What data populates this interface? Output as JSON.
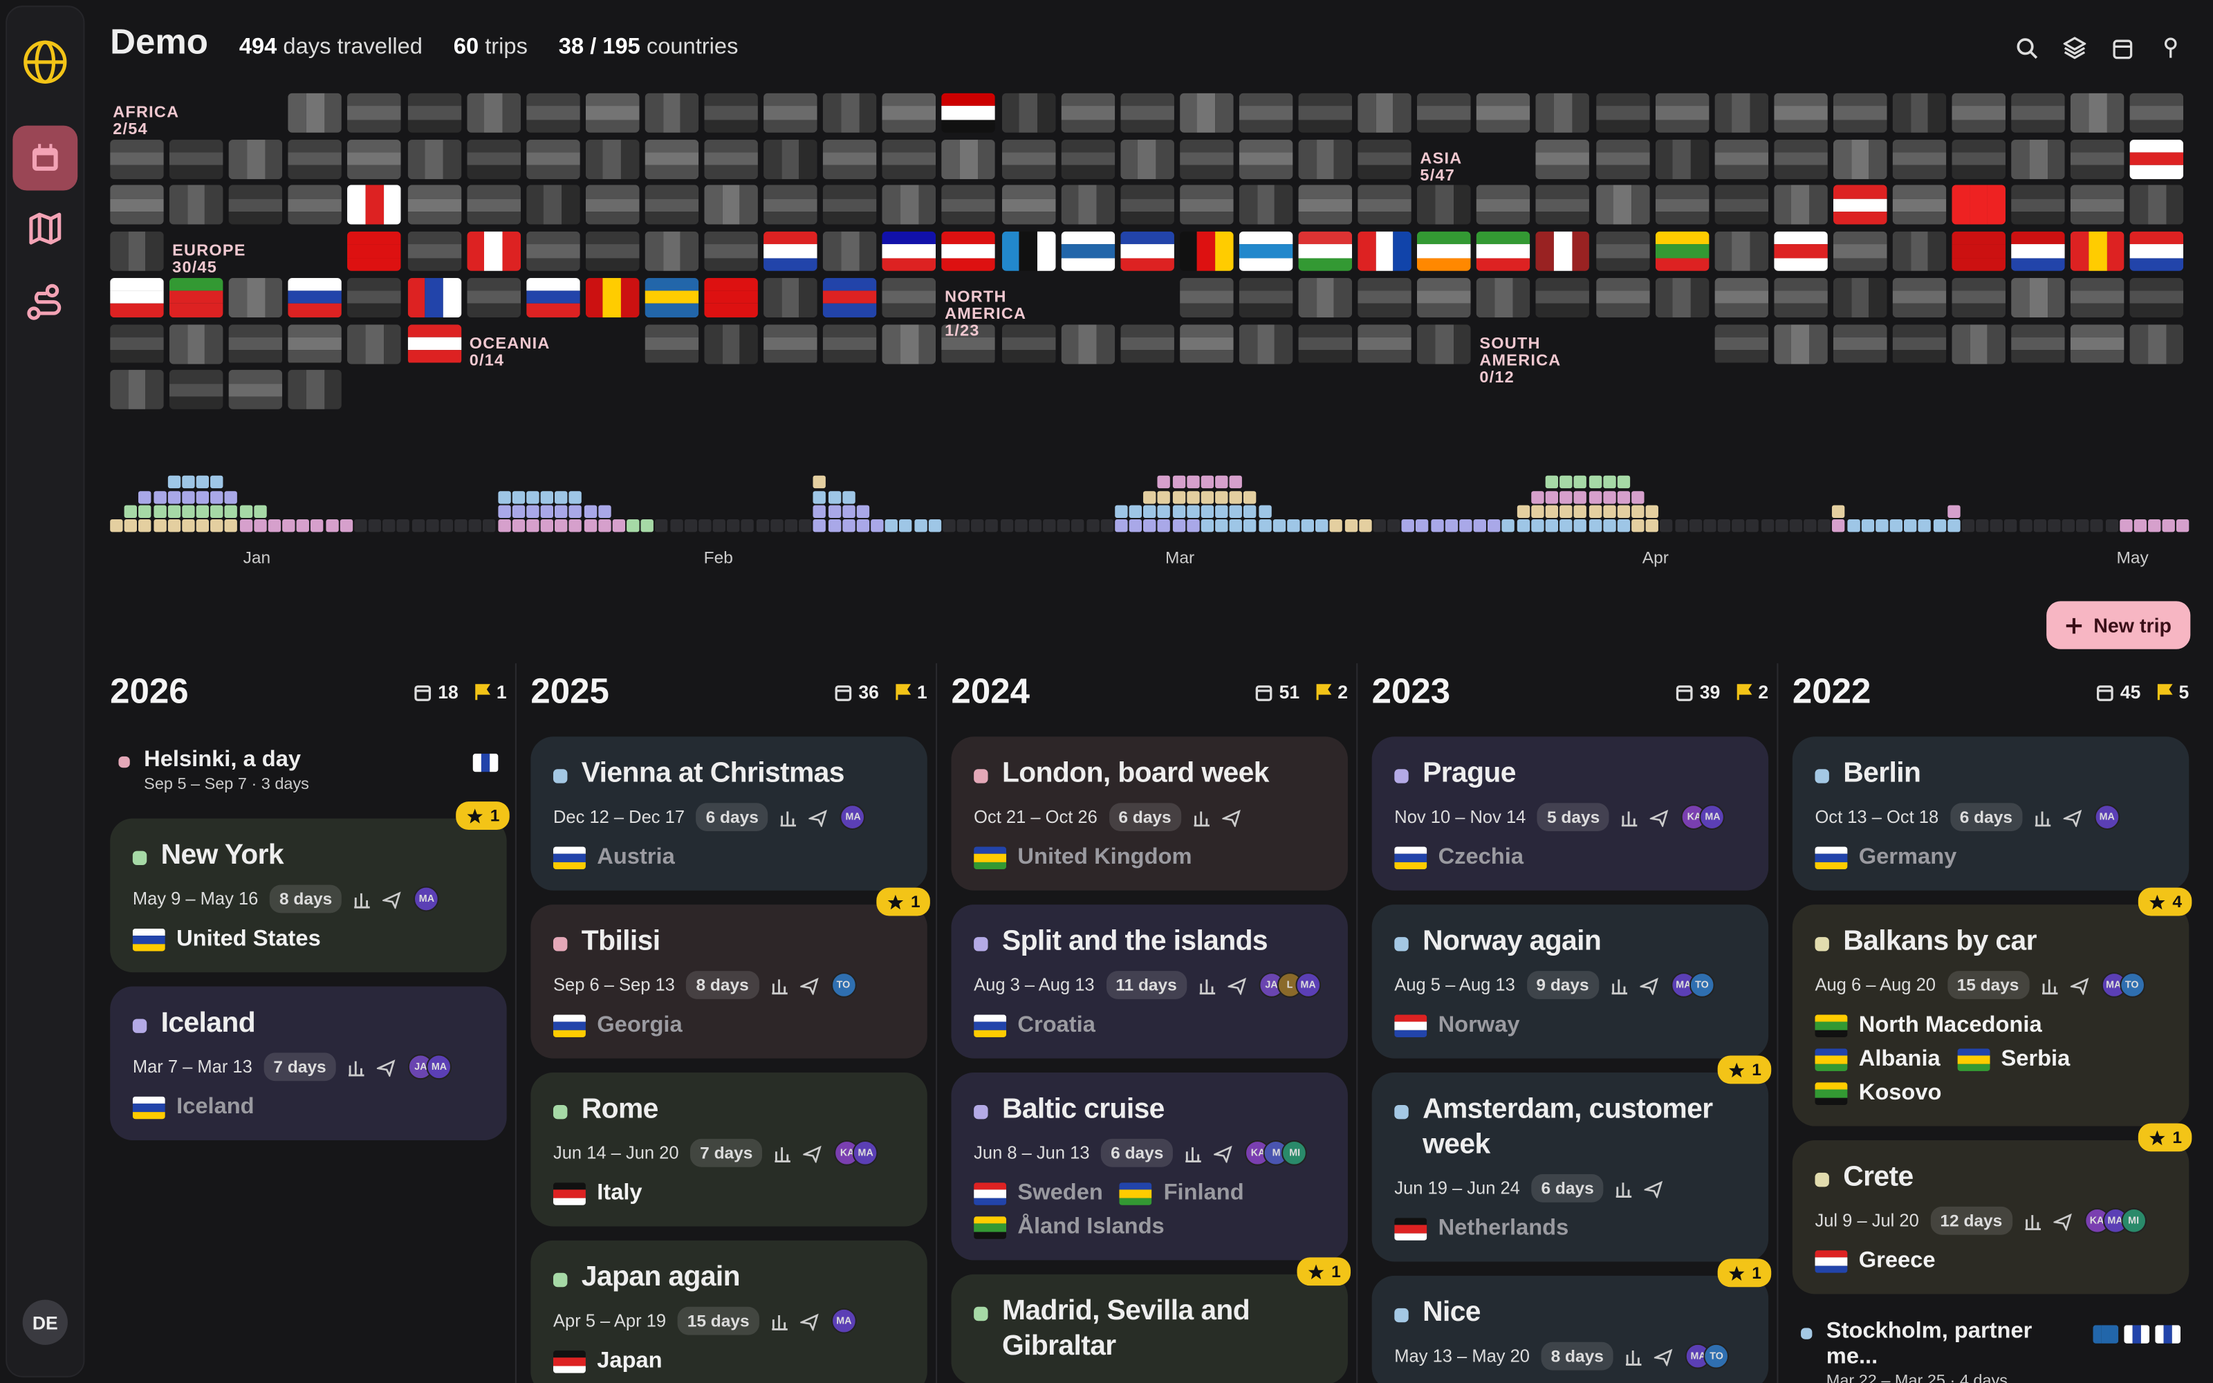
{
  "header": {
    "title": "Demo",
    "stats": [
      {
        "value": "494",
        "label": "days travelled"
      },
      {
        "value": "60",
        "label": "trips"
      },
      {
        "value": "38 / 195",
        "label": "countries"
      }
    ]
  },
  "continents": [
    "AFRICA 2/54",
    "ASIA 5/47",
    "EUROPE 30/45",
    "NORTH AMERICA 1/23",
    "OCEANIA 0/14",
    "SOUTH AMERICA 0/12"
  ],
  "months": [
    "Jan",
    "Feb",
    "Mar",
    "Apr",
    "May"
  ],
  "new_trip": "New trip",
  "user": "DE",
  "years": [
    {
      "year": "2026",
      "days": "18",
      "flags": "1",
      "trips": [
        {
          "compact": true,
          "title": "Helsinki, a day",
          "dates": "Sep 5 – Sep 7 · 3 days",
          "color": "pink"
        },
        {
          "title": "New York",
          "dates": "May 9 – May 16",
          "duration": "8 days",
          "avatars": [
            "MA"
          ],
          "countries": [
            "United States"
          ],
          "star": "1",
          "color": "green"
        },
        {
          "title": "Iceland",
          "dates": "Mar 7 – Mar 13",
          "duration": "7 days",
          "avatars": [
            "JA",
            "MA"
          ],
          "countries": [
            "Iceland"
          ],
          "color": "purple"
        }
      ]
    },
    {
      "year": "2025",
      "days": "36",
      "flags": "1",
      "trips": [
        {
          "title": "Vienna at Christmas",
          "dates": "Dec 12 – Dec 17",
          "duration": "6 days",
          "avatars": [
            "MA"
          ],
          "countries": [
            "Austria"
          ],
          "color": "blue"
        },
        {
          "title": "Tbilisi",
          "dates": "Sep 6 – Sep 13",
          "duration": "8 days",
          "avatars": [
            "TO"
          ],
          "countries": [
            "Georgia"
          ],
          "star": "1",
          "color": "pink"
        },
        {
          "title": "Rome",
          "dates": "Jun 14 – Jun 20",
          "duration": "7 days",
          "avatars": [
            "KA",
            "MA"
          ],
          "countries": [
            "Italy"
          ],
          "color": "green"
        },
        {
          "title": "Japan again",
          "dates": "Apr 5 – Apr 19",
          "duration": "15 days",
          "avatars": [
            "MA"
          ],
          "countries": [
            "Japan"
          ],
          "color": "green"
        }
      ]
    },
    {
      "year": "2024",
      "days": "51",
      "flags": "2",
      "trips": [
        {
          "title": "London, board week",
          "dates": "Oct 21 – Oct 26",
          "duration": "6 days",
          "avatars": [],
          "countries": [
            "United Kingdom"
          ],
          "color": "pink"
        },
        {
          "title": "Split and the islands",
          "dates": "Aug 3 – Aug 13",
          "duration": "11 days",
          "avatars": [
            "JA",
            "L",
            "MA"
          ],
          "countries": [
            "Croatia"
          ],
          "color": "purple"
        },
        {
          "title": "Baltic cruise",
          "dates": "Jun 8 – Jun 13",
          "duration": "6 days",
          "avatars": [
            "KA",
            "M",
            "MI"
          ],
          "countries": [
            "Sweden",
            "Finland",
            "Åland Islands"
          ],
          "color": "purple"
        },
        {
          "title": "Madrid, Sevilla and Gibraltar",
          "star": "1",
          "color": "green"
        }
      ]
    },
    {
      "year": "2023",
      "days": "39",
      "flags": "2",
      "trips": [
        {
          "title": "Prague",
          "dates": "Nov 10 – Nov 14",
          "duration": "5 days",
          "avatars": [
            "KA",
            "MA"
          ],
          "countries": [
            "Czechia"
          ],
          "color": "purple"
        },
        {
          "title": "Norway again",
          "dates": "Aug 5 – Aug 13",
          "duration": "9 days",
          "avatars": [
            "MA",
            "TO"
          ],
          "countries": [
            "Norway"
          ],
          "color": "blue"
        },
        {
          "title": "Amsterdam, customer week",
          "dates": "Jun 19 – Jun 24",
          "duration": "6 days",
          "avatars": [],
          "countries": [
            "Netherlands"
          ],
          "star": "1",
          "color": "blue"
        },
        {
          "title": "Nice",
          "dates": "May 13 – May 20",
          "duration": "8 days",
          "avatars": [
            "MA",
            "TO"
          ],
          "countries": [],
          "star": "1",
          "color": "blue"
        }
      ]
    },
    {
      "year": "2022",
      "days": "45",
      "flags": "5",
      "trips": [
        {
          "title": "Berlin",
          "dates": "Oct 13 – Oct 18",
          "duration": "6 days",
          "avatars": [
            "MA"
          ],
          "countries": [
            "Germany"
          ],
          "color": "blue"
        },
        {
          "title": "Balkans by car",
          "dates": "Aug 6 – Aug 20",
          "duration": "15 days",
          "avatars": [
            "MA",
            "TO"
          ],
          "countries": [
            "North Macedonia",
            "Albania",
            "Serbia",
            "Kosovo"
          ],
          "star": "4",
          "color": "yellow"
        },
        {
          "title": "Crete",
          "dates": "Jul 9 – Jul 20",
          "duration": "12 days",
          "avatars": [
            "KA",
            "MA",
            "MI"
          ],
          "countries": [
            "Greece"
          ],
          "star": "1",
          "color": "yellow"
        },
        {
          "compact": true,
          "title": "Stockholm, partner me...",
          "dates": "Mar 22 – Mar 25 · 4 days",
          "color": "blue"
        }
      ]
    }
  ]
}
